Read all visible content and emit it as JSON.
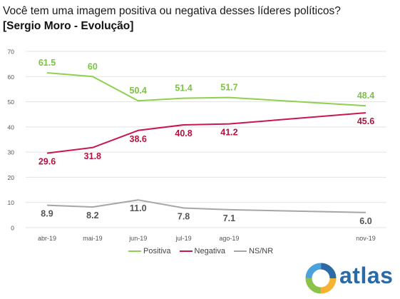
{
  "header": {
    "title": "Você tem uma imagem positiva ou negativa desses líderes políticos?",
    "subtitle": "[Sergio Moro - Evolução]"
  },
  "logo": {
    "text": "atlas"
  },
  "chart_data": {
    "type": "line",
    "title": "Você tem uma imagem positiva ou negativa desses líderes políticos?",
    "subtitle": "[Sergio Moro - Evolução]",
    "x": [
      "abr-19",
      "mai-19",
      "jun-19",
      "jul-19",
      "ago-19",
      "nov-19"
    ],
    "x_months": [
      0,
      1,
      2,
      3,
      4,
      7
    ],
    "ylim": [
      0,
      70
    ],
    "yticks": [
      0,
      10,
      20,
      30,
      40,
      50,
      60,
      70
    ],
    "grid": true,
    "legend_position": "bottom",
    "series": [
      {
        "name": "Positiva",
        "color": "#8fd14f",
        "label_color": "#7dc242",
        "label_pos": "above",
        "values": [
          61.5,
          60,
          50.4,
          51.4,
          51.7,
          48.4
        ],
        "labels": [
          "61.5",
          "60",
          "50.4",
          "51.4",
          "51.7",
          "48.4"
        ]
      },
      {
        "name": "Negativa",
        "color": "#c8174f",
        "label_color": "#b5123f",
        "label_pos": "below",
        "values": [
          29.6,
          31.8,
          38.6,
          40.8,
          41.2,
          45.6
        ],
        "labels": [
          "29.6",
          "31.8",
          "38.6",
          "40.8",
          "41.2",
          "45.6"
        ]
      },
      {
        "name": "NS/NR",
        "color": "#a6a6a6",
        "label_color": "#555555",
        "label_pos": "below",
        "values": [
          8.9,
          8.2,
          11.0,
          7.8,
          7.1,
          6.0
        ],
        "labels": [
          "8.9",
          "8.2",
          "11.0",
          "7.8",
          "7.1",
          "6.0"
        ]
      }
    ]
  },
  "colors": {
    "logo_text": "#2a6aa6",
    "logo_ring": [
      "#f5b335",
      "#8bc34a",
      "#4aa3df",
      "#2a6aa6"
    ]
  }
}
